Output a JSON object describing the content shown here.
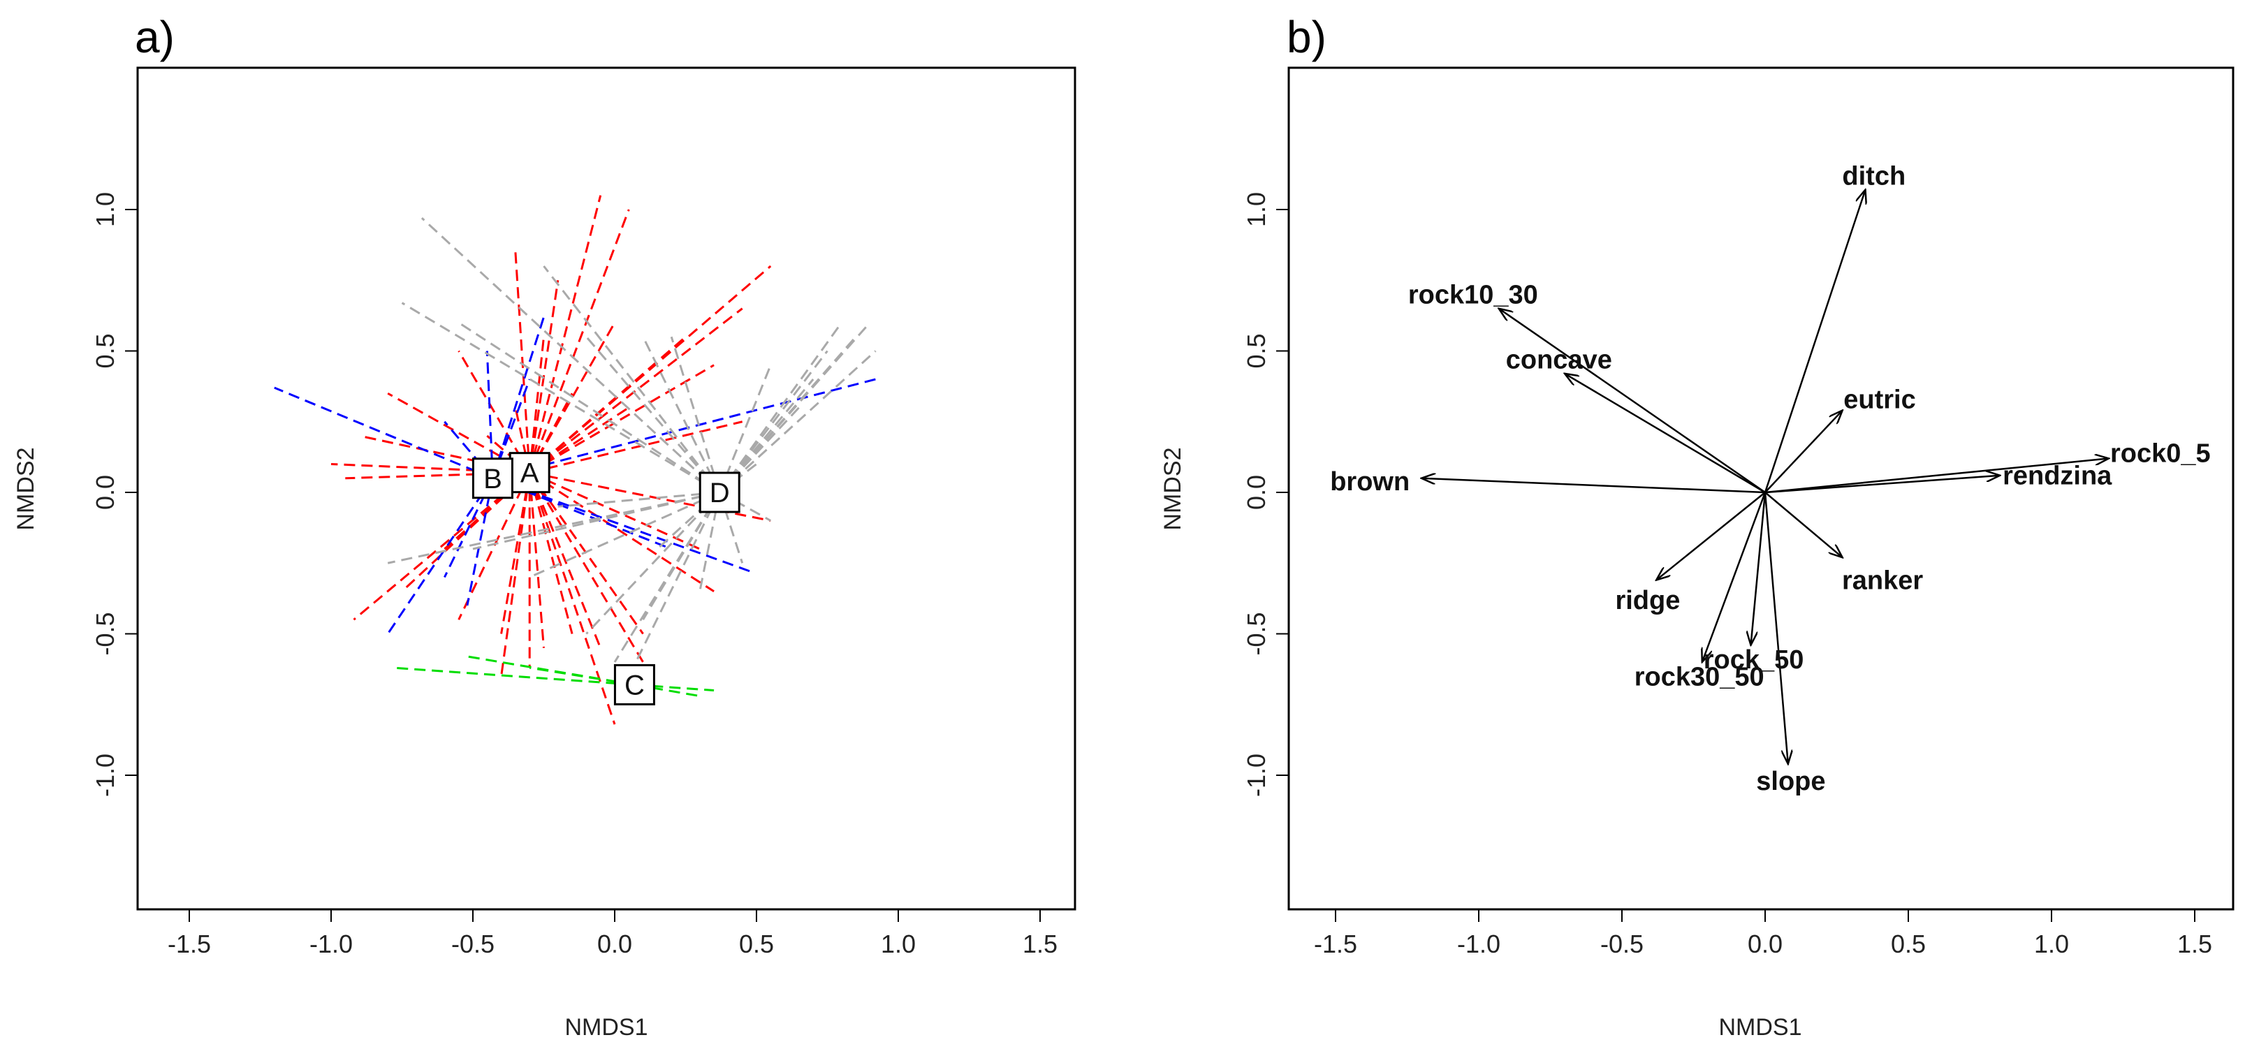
{
  "chart_data": [
    {
      "type": "scatter",
      "panel_label": "a)",
      "title": "",
      "xlabel": "NMDS1",
      "ylabel": "NMDS2",
      "xlim": [
        -1.6,
        1.6
      ],
      "ylim": [
        -1.45,
        1.45
      ],
      "xticks": [
        -1.5,
        -1.0,
        -0.5,
        0.0,
        0.5,
        1.0,
        1.5
      ],
      "xtick_labels": [
        "-1.5",
        "-1.0",
        "-0.5",
        "0.0",
        "0.5",
        "1.0",
        "1.5"
      ],
      "yticks": [
        -1.0,
        -0.5,
        0.0,
        0.5,
        1.0
      ],
      "ytick_labels": [
        "-1.0",
        "-0.5",
        "0.0",
        "0.5",
        "1.0"
      ],
      "groups": [
        {
          "name": "A",
          "color": "#ff0000",
          "centroid": [
            -0.3,
            0.07
          ],
          "spider_ends": [
            [
              -0.05,
              1.05
            ],
            [
              0.05,
              1.0
            ],
            [
              -0.35,
              0.85
            ],
            [
              0.55,
              0.8
            ],
            [
              0.45,
              0.65
            ],
            [
              -0.8,
              0.35
            ],
            [
              -0.9,
              0.2
            ],
            [
              -1.0,
              0.1
            ],
            [
              -0.95,
              0.05
            ],
            [
              -0.55,
              0.5
            ],
            [
              -0.25,
              0.55
            ],
            [
              0.0,
              0.6
            ],
            [
              0.25,
              0.55
            ],
            [
              0.35,
              0.45
            ],
            [
              -0.2,
              0.75
            ],
            [
              0.45,
              0.25
            ],
            [
              0.55,
              -0.1
            ],
            [
              0.35,
              -0.35
            ],
            [
              0.1,
              -0.5
            ],
            [
              -0.05,
              -0.55
            ],
            [
              -0.15,
              -0.5
            ],
            [
              -0.25,
              -0.55
            ],
            [
              -0.4,
              -0.5
            ],
            [
              -0.55,
              -0.45
            ],
            [
              -0.75,
              -0.35
            ],
            [
              -0.92,
              -0.45
            ],
            [
              -0.6,
              -0.2
            ],
            [
              -0.4,
              -0.65
            ],
            [
              -0.3,
              -0.62
            ],
            [
              0.0,
              -0.82
            ],
            [
              0.1,
              -0.6
            ],
            [
              -0.35,
              0.3
            ],
            [
              -0.15,
              0.35
            ],
            [
              0.05,
              0.3
            ],
            [
              -0.45,
              0.2
            ],
            [
              0.3,
              -0.2
            ]
          ]
        },
        {
          "name": "B",
          "color": "#0000ff",
          "centroid": [
            -0.43,
            0.05
          ],
          "spider_ends": [
            [
              -1.2,
              0.37
            ],
            [
              -0.45,
              0.5
            ],
            [
              -0.25,
              0.62
            ],
            [
              -0.6,
              0.25
            ],
            [
              0.92,
              0.4
            ],
            [
              0.48,
              -0.28
            ],
            [
              0.2,
              -0.2
            ],
            [
              -0.8,
              -0.5
            ],
            [
              -0.52,
              -0.4
            ],
            [
              -0.6,
              -0.3
            ],
            [
              -0.3,
              0.4
            ]
          ]
        },
        {
          "name": "C",
          "color": "#00dd00",
          "centroid": [
            0.07,
            -0.68
          ],
          "spider_ends": [
            [
              -0.78,
              -0.62
            ],
            [
              0.35,
              -0.7
            ],
            [
              -0.52,
              -0.58
            ],
            [
              0.3,
              -0.72
            ],
            [
              -0.3,
              -0.62
            ]
          ]
        },
        {
          "name": "D",
          "color": "#a9a9a9",
          "centroid": [
            0.37,
            0.0
          ],
          "spider_ends": [
            [
              -0.68,
              0.97
            ],
            [
              -0.75,
              0.67
            ],
            [
              -0.55,
              0.6
            ],
            [
              -0.25,
              0.8
            ],
            [
              -0.1,
              0.55
            ],
            [
              0.1,
              0.55
            ],
            [
              0.2,
              0.55
            ],
            [
              0.55,
              0.45
            ],
            [
              0.8,
              0.6
            ],
            [
              0.9,
              0.6
            ],
            [
              0.92,
              0.5
            ],
            [
              0.7,
              0.4
            ],
            [
              0.65,
              0.3
            ],
            [
              0.55,
              -0.1
            ],
            [
              0.45,
              -0.25
            ],
            [
              0.3,
              -0.35
            ],
            [
              0.1,
              -0.45
            ],
            [
              0.0,
              -0.6
            ],
            [
              0.05,
              -0.65
            ],
            [
              -0.1,
              -0.5
            ],
            [
              -0.3,
              -0.3
            ],
            [
              -0.5,
              -0.2
            ],
            [
              -0.8,
              -0.25
            ],
            [
              0.85,
              0.55
            ],
            [
              0.75,
              0.5
            ],
            [
              0.5,
              0.1
            ],
            [
              -0.2,
              -0.05
            ],
            [
              0.25,
              0.15
            ],
            [
              0.15,
              -0.2
            ]
          ]
        }
      ]
    },
    {
      "type": "scatter",
      "panel_label": "b)",
      "title": "",
      "xlabel": "NMDS1",
      "ylabel": "NMDS2",
      "xlim": [
        -1.6,
        1.6
      ],
      "ylim": [
        -1.45,
        1.45
      ],
      "xticks": [
        -1.5,
        -1.0,
        -0.5,
        0.0,
        0.5,
        1.0,
        1.5
      ],
      "xtick_labels": [
        "-1.5",
        "-1.0",
        "-0.5",
        "0.0",
        "0.5",
        "1.0",
        "1.5"
      ],
      "yticks": [
        -1.0,
        -0.5,
        0.0,
        0.5,
        1.0
      ],
      "ytick_labels": [
        "-1.0",
        "-0.5",
        "0.0",
        "0.5",
        "1.0"
      ],
      "vectors": [
        {
          "name": "ditch",
          "x": 0.35,
          "y": 1.07,
          "label": [
            0.38,
            1.12
          ]
        },
        {
          "name": "rock10_30",
          "x": -0.93,
          "y": 0.65,
          "label": [
            -1.02,
            0.7
          ]
        },
        {
          "name": "concave",
          "x": -0.7,
          "y": 0.42,
          "label": [
            -0.72,
            0.47
          ]
        },
        {
          "name": "eutric",
          "x": 0.27,
          "y": 0.29,
          "label": [
            0.4,
            0.33
          ]
        },
        {
          "name": "rock0_5",
          "x": 1.2,
          "y": 0.12,
          "label": [
            1.38,
            0.14
          ]
        },
        {
          "name": "rendzina",
          "x": 0.82,
          "y": 0.06,
          "label": [
            1.02,
            0.06
          ]
        },
        {
          "name": "brown",
          "x": -1.2,
          "y": 0.05,
          "label": [
            -1.38,
            0.04
          ]
        },
        {
          "name": "ranker",
          "x": 0.27,
          "y": -0.23,
          "label": [
            0.41,
            -0.31
          ]
        },
        {
          "name": "ridge",
          "x": -0.38,
          "y": -0.31,
          "label": [
            -0.41,
            -0.38
          ]
        },
        {
          "name": "rock_50",
          "x": -0.05,
          "y": -0.54,
          "label": [
            -0.04,
            -0.59
          ]
        },
        {
          "name": "rock30_50",
          "x": -0.22,
          "y": -0.6,
          "label": [
            -0.23,
            -0.65
          ]
        },
        {
          "name": "slope",
          "x": 0.08,
          "y": -0.96,
          "label": [
            0.09,
            -1.02
          ]
        }
      ]
    }
  ]
}
